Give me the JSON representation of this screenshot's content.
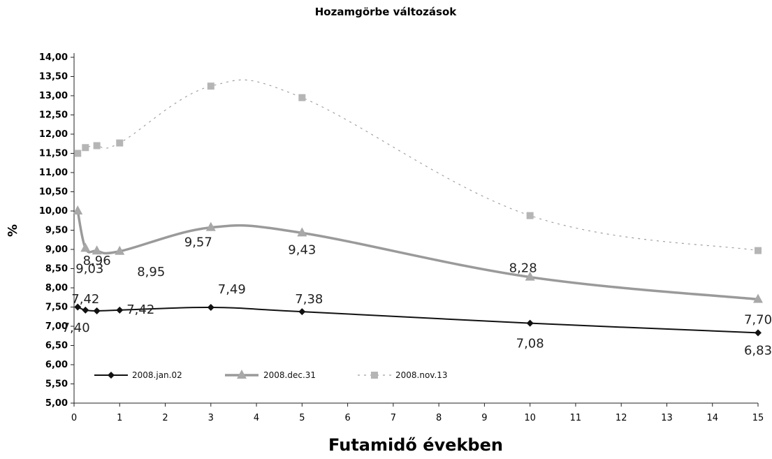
{
  "chart_data": {
    "type": "line",
    "title": "Hozamgörbe változások",
    "xlabel": "Futamidő években",
    "ylabel": "%",
    "xlim": [
      0,
      15
    ],
    "ylim": [
      5.0,
      14.0
    ],
    "x_ticks": [
      "0",
      "1",
      "2",
      "3",
      "4",
      "5",
      "6",
      "7",
      "8",
      "9",
      "10",
      "11",
      "12",
      "13",
      "14",
      "15"
    ],
    "y_ticks": [
      "5,00",
      "5,50",
      "6,00",
      "6,50",
      "7,00",
      "7,50",
      "8,00",
      "8,50",
      "9,00",
      "9,50",
      "10,00",
      "10,50",
      "11,00",
      "11,50",
      "12,00",
      "12,50",
      "13,00",
      "13,50",
      "14,00"
    ],
    "grid": false,
    "legend_position": "bottom-left",
    "series": [
      {
        "name": "2008.jan.02",
        "style": "line-diamond",
        "color": "#111111",
        "x": [
          0.08,
          0.25,
          0.5,
          1,
          3,
          5,
          10,
          15
        ],
        "y": [
          7.5,
          7.42,
          7.4,
          7.42,
          7.49,
          7.38,
          7.08,
          6.83
        ],
        "labels": [
          "7,42",
          "7,40",
          "7,42",
          "7,49",
          "7,38",
          "7,08",
          "6,83"
        ]
      },
      {
        "name": "2008.dec.31",
        "style": "line-triangle",
        "color": "#9a9a9a",
        "x": [
          0.08,
          0.25,
          0.5,
          1,
          3,
          5,
          10,
          15
        ],
        "y": [
          10.0,
          9.03,
          8.96,
          8.95,
          9.57,
          9.43,
          8.28,
          7.7
        ],
        "labels": [
          "9,03",
          "8,96",
          "8,95",
          "9,57",
          "9,43",
          "8,28",
          "7,70"
        ]
      },
      {
        "name": "2008.nov.13",
        "style": "dashed-square",
        "color": "#b5b5b5",
        "x": [
          0.08,
          0.25,
          0.5,
          1,
          3,
          5,
          10,
          15
        ],
        "y": [
          11.5,
          11.65,
          11.7,
          11.77,
          13.25,
          12.95,
          9.88,
          8.97
        ]
      }
    ]
  }
}
